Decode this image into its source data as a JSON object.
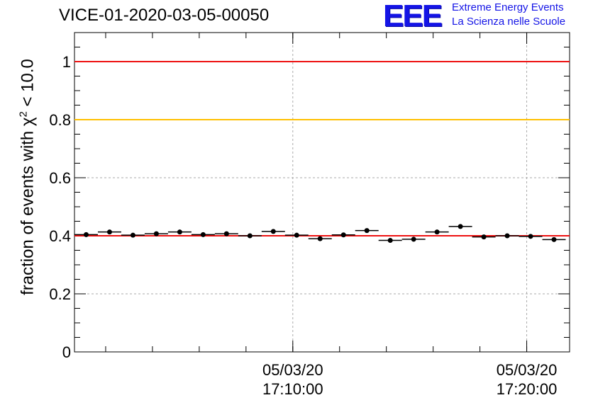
{
  "title": "VICE-01-2020-03-05-00050",
  "logo": {
    "mark": "EEE",
    "line1": "Extreme Energy Events",
    "line2": "La Scienza nelle Scuole",
    "color": "#1414e6"
  },
  "ylabel": {
    "prefix": "fraction of events with ",
    "symbol": "χ",
    "sup": "2",
    "suffix": " < 10.0"
  },
  "chart_data": {
    "type": "scatter",
    "title": "VICE-01-2020-03-05-00050",
    "xlabel": "",
    "ylabel": "fraction of events with χ² < 10.0",
    "ylim": [
      0,
      1.1
    ],
    "yticks": [
      0,
      0.2,
      0.4,
      0.6,
      0.8,
      1
    ],
    "ytick_labels": [
      "0",
      "0.2",
      "0.4",
      "0.6",
      "0.8",
      "1"
    ],
    "xticks_labeled": [
      {
        "time": "2020-03-05 17:10:00",
        "line1": "05/03/20",
        "line2": "17:10:00"
      },
      {
        "time": "2020-03-05 17:20:00",
        "line1": "05/03/20",
        "line2": "17:20:00"
      }
    ],
    "xlim": [
      "2020-03-05 17:00:40",
      "2020-03-05 17:21:50"
    ],
    "bin_width_minutes": 1,
    "grid": true,
    "reference_lines": [
      {
        "y": 1.0,
        "color": "#ee1111"
      },
      {
        "y": 0.8,
        "color": "#ffc000"
      },
      {
        "y": 0.4,
        "color": "#ee1111"
      }
    ],
    "series": [
      {
        "x": [
          "17:01:10",
          "17:02:10",
          "17:03:10",
          "17:04:10",
          "17:05:10",
          "17:06:10",
          "17:07:10",
          "17:08:10",
          "17:09:10",
          "17:10:10",
          "17:11:10",
          "17:12:10",
          "17:13:10",
          "17:14:10",
          "17:15:10",
          "17:16:10",
          "17:17:10",
          "17:18:10",
          "17:19:10",
          "17:20:10",
          "17:21:10"
        ],
        "y": [
          0.404,
          0.413,
          0.402,
          0.407,
          0.413,
          0.404,
          0.407,
          0.4,
          0.415,
          0.402,
          0.39,
          0.403,
          0.418,
          0.384,
          0.388,
          0.413,
          0.432,
          0.396,
          0.4,
          0.398,
          0.387
        ]
      }
    ]
  }
}
